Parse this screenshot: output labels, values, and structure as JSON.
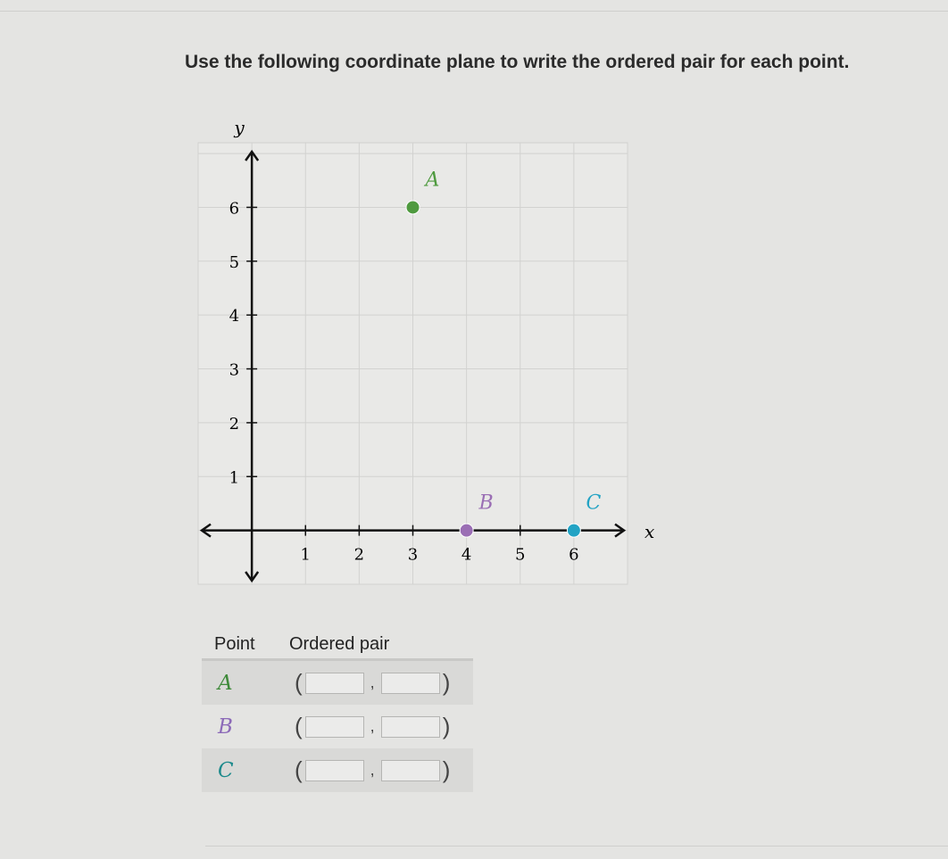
{
  "prompt": "Use the following coordinate plane to write the ordered pair for each point.",
  "chart_data": {
    "type": "scatter",
    "xlabel": "x",
    "ylabel": "y",
    "xlim": [
      -1,
      7
    ],
    "ylim": [
      -1,
      7.2
    ],
    "grid": true,
    "x_ticks": [
      "1",
      "2",
      "3",
      "4",
      "5",
      "6"
    ],
    "y_ticks": [
      "1",
      "2",
      "3",
      "4",
      "5",
      "6"
    ],
    "points": [
      {
        "name": "A",
        "x": 3,
        "y": 6,
        "color": "#4f9a3f"
      },
      {
        "name": "B",
        "x": 4,
        "y": 0,
        "color": "#9a6eb4"
      },
      {
        "name": "C",
        "x": 6,
        "y": 0,
        "color": "#22a3c4"
      }
    ]
  },
  "table": {
    "headers": [
      "Point",
      "Ordered pair"
    ],
    "rows": [
      {
        "point": "A",
        "color": "#3f8a3a",
        "x_value": "",
        "y_value": ""
      },
      {
        "point": "B",
        "color": "#8c6ab8",
        "x_value": "",
        "y_value": ""
      },
      {
        "point": "C",
        "color": "#1d8a8c",
        "x_value": "",
        "y_value": ""
      }
    ],
    "open_paren": "(",
    "comma": ",",
    "close_paren": ")"
  }
}
